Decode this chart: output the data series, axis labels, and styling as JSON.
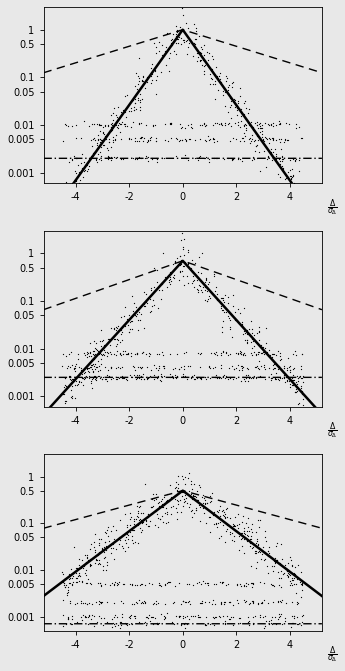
{
  "panels": [
    {
      "laplace_b_solid": 0.55,
      "laplace_b_dashed": 2.5,
      "peak_solid": 1.0,
      "peak_dashed": 1.0,
      "ylim": [
        0.0006,
        3.0
      ],
      "yticks": [
        0.001,
        0.005,
        0.01,
        0.05,
        0.1,
        0.5,
        1
      ],
      "ytick_labels": [
        "0.001",
        "0.005",
        "0.01",
        "0.05",
        "0.1",
        "0.5",
        "1"
      ],
      "flat_levels": [
        0.01,
        0.005
      ],
      "flat_level_dashdot": 0.002,
      "n_scatter": 400,
      "scatter_noise": 0.5
    },
    {
      "laplace_b_solid": 0.7,
      "laplace_b_dashed": 2.2,
      "peak_solid": 0.7,
      "peak_dashed": 0.7,
      "ylim": [
        0.0006,
        3.0
      ],
      "yticks": [
        0.001,
        0.005,
        0.01,
        0.05,
        0.1,
        0.5,
        1
      ],
      "ytick_labels": [
        "0.001",
        "0.005",
        "0.01",
        "0.05",
        "0.1",
        "0.5",
        "1"
      ],
      "flat_levels": [
        0.008,
        0.004,
        0.0025
      ],
      "flat_level_dashdot": 0.0025,
      "n_scatter": 400,
      "scatter_noise": 0.5
    },
    {
      "laplace_b_solid": 1.0,
      "laplace_b_dashed": 2.8,
      "peak_solid": 0.5,
      "peak_dashed": 0.5,
      "ylim": [
        0.0005,
        3.0
      ],
      "yticks": [
        0.001,
        0.005,
        0.01,
        0.05,
        0.1,
        0.5,
        1
      ],
      "ytick_labels": [
        "0.001",
        "0.005",
        "0.01",
        "0.05",
        "0.1",
        "0.5",
        "1"
      ],
      "flat_levels": [
        0.005,
        0.002,
        0.001
      ],
      "flat_level_dashdot": 0.0007,
      "n_scatter": 500,
      "scatter_noise": 0.5
    }
  ],
  "xlim": [
    -5.2,
    5.2
  ],
  "xticks": [
    -4,
    -2,
    0,
    2,
    4
  ],
  "background": "#f0f0f0",
  "line_color": "#000000",
  "dot_color": "#000000",
  "dot_size": 1.8,
  "np_seed": 12
}
